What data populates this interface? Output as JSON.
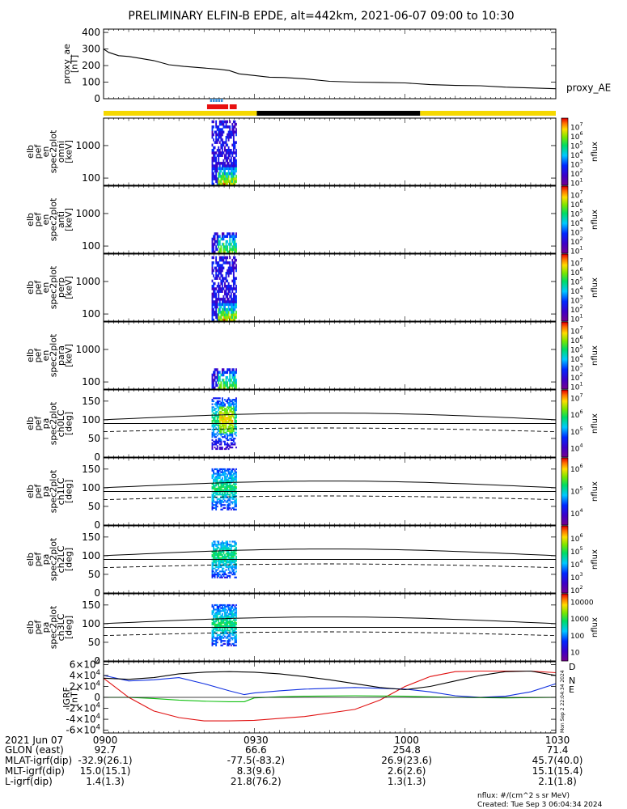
{
  "title": "PRELIMINARY ELFIN-B EPDE, alt=442km, 2021-06-07 09:00 to 10:30",
  "colors": {
    "axis": "#000000",
    "sunlight": "#f5d800",
    "shadow": "#000000",
    "science": "#e81010",
    "fast": "#3a8fd8",
    "bx": "#e01010",
    "by": "#1030e0",
    "bz": "#10c010",
    "btot": "#000000"
  },
  "chart_data": [
    {
      "type": "line",
      "id": "ae",
      "ylabel": [
        "proxy_ae",
        "[nT]"
      ],
      "ylim": [
        0,
        420
      ],
      "yticks": [
        0,
        100,
        200,
        300,
        400
      ],
      "series": [
        {
          "name": "proxy_AE",
          "x": [
            0,
            1,
            3,
            5,
            7,
            10,
            13,
            16,
            20,
            23,
            25,
            27,
            30,
            33,
            36,
            40,
            45,
            50,
            55,
            60,
            65,
            70,
            75,
            80,
            85,
            90
          ],
          "values": [
            300,
            280,
            260,
            255,
            245,
            230,
            205,
            195,
            185,
            178,
            170,
            150,
            140,
            130,
            128,
            120,
            105,
            100,
            98,
            95,
            85,
            80,
            78,
            70,
            65,
            60
          ]
        }
      ]
    },
    {
      "type": "heatmap",
      "id": "omni",
      "ylabel": [
        "elb",
        "pef",
        "en",
        "spec2plot",
        "omni",
        "[keV]"
      ],
      "yscale": "log",
      "ylim": [
        60,
        7000
      ],
      "yticks": [
        100,
        1000
      ],
      "colorbar": {
        "label": "nflux",
        "ticks": [
          "10^1",
          "10^2",
          "10^3",
          "10^4",
          "10^5",
          "10^6",
          "10^7"
        ]
      }
    },
    {
      "type": "heatmap",
      "id": "anti",
      "ylabel": [
        "elb",
        "pef",
        "en",
        "spec2plot",
        "anti",
        "[keV]"
      ],
      "yscale": "log",
      "ylim": [
        60,
        7000
      ],
      "yticks": [
        100,
        1000
      ],
      "colorbar": {
        "label": "nflux",
        "ticks": [
          "10^1",
          "10^2",
          "10^3",
          "10^4",
          "10^5",
          "10^6",
          "10^7"
        ]
      }
    },
    {
      "type": "heatmap",
      "id": "perp",
      "ylabel": [
        "elb",
        "pef",
        "en",
        "spec2plot",
        "perp",
        "[keV]"
      ],
      "yscale": "log",
      "ylim": [
        60,
        7000
      ],
      "yticks": [
        100,
        1000
      ],
      "colorbar": {
        "label": "nflux",
        "ticks": [
          "10^1",
          "10^2",
          "10^3",
          "10^4",
          "10^5",
          "10^6",
          "10^7"
        ]
      }
    },
    {
      "type": "heatmap",
      "id": "para",
      "ylabel": [
        "elb",
        "pef",
        "en",
        "spec2plot",
        "para",
        "[keV]"
      ],
      "yscale": "log",
      "ylim": [
        60,
        7000
      ],
      "yticks": [
        100,
        1000
      ],
      "colorbar": {
        "label": "nflux",
        "ticks": [
          "10^1",
          "10^2",
          "10^3",
          "10^4",
          "10^5",
          "10^6",
          "10^7"
        ]
      }
    },
    {
      "type": "heatmap",
      "id": "ch0",
      "ylabel": [
        "elb",
        "pef",
        "pa",
        "spec2plot",
        "ch0LC",
        "[deg]"
      ],
      "ylim": [
        0,
        180
      ],
      "yticks": [
        0,
        50,
        100,
        150
      ],
      "colorbar": {
        "label": "nflux",
        "ticks": [
          "10^4",
          "10^5",
          "10^6",
          "10^7"
        ]
      }
    },
    {
      "type": "heatmap",
      "id": "ch1",
      "ylabel": [
        "elb",
        "pef",
        "pa",
        "spec2plot",
        "ch1LC",
        "[deg]"
      ],
      "ylim": [
        0,
        180
      ],
      "yticks": [
        0,
        50,
        100,
        150
      ],
      "colorbar": {
        "label": "nflux",
        "ticks": [
          "10^4",
          "10^5",
          "10^6"
        ]
      }
    },
    {
      "type": "heatmap",
      "id": "ch2",
      "ylabel": [
        "elb",
        "pef",
        "pa",
        "spec2plot",
        "ch2LC",
        "[deg]"
      ],
      "ylim": [
        0,
        180
      ],
      "yticks": [
        0,
        50,
        100,
        150
      ],
      "colorbar": {
        "label": "nflux",
        "ticks": [
          "10^2",
          "10^3",
          "10^4",
          "10^5",
          "10^6"
        ]
      }
    },
    {
      "type": "heatmap",
      "id": "ch3",
      "ylabel": [
        "elb",
        "pef",
        "pa",
        "spec2plot",
        "ch3LC",
        "[deg]"
      ],
      "ylim": [
        0,
        180
      ],
      "yticks": [
        0,
        50,
        100,
        150
      ],
      "colorbar": {
        "label": "nflux",
        "ticks": [
          "10",
          "100",
          "1000",
          "10000"
        ]
      }
    },
    {
      "type": "line",
      "id": "igrf",
      "ylabel": [
        "IGRF",
        "[nT]"
      ],
      "ylim": [
        -65000,
        65000
      ],
      "yticks": [
        "-6×10^4",
        "-4×10^4",
        "-2×10^4",
        "0",
        "2×10^4",
        "4×10^4",
        "6×10^4"
      ],
      "series": [
        {
          "name": "D",
          "x": [
            0,
            5,
            10,
            15,
            20,
            25,
            30,
            40,
            50,
            55,
            60,
            65,
            70,
            75,
            80,
            85,
            90
          ],
          "values": [
            35000,
            0,
            -25000,
            -37000,
            -43000,
            -43000,
            -42000,
            -35000,
            -22000,
            -5000,
            20000,
            38000,
            47000,
            48000,
            48000,
            48000,
            45000
          ]
        },
        {
          "name": "N",
          "x": [
            0,
            5,
            10,
            15,
            20,
            25,
            28,
            30,
            35,
            40,
            50,
            60,
            65,
            70,
            75,
            80,
            85,
            90
          ],
          "values": [
            40000,
            30000,
            32000,
            36000,
            25000,
            12000,
            5000,
            8000,
            12000,
            15000,
            18000,
            15000,
            10000,
            3000,
            0,
            2000,
            10000,
            25000
          ]
        },
        {
          "name": "E",
          "x": [
            0,
            5,
            10,
            15,
            20,
            25,
            28,
            30,
            35,
            40,
            50,
            60,
            70,
            80,
            90
          ],
          "values": [
            0,
            0,
            -2000,
            -5000,
            -7000,
            -8000,
            -8000,
            -1000,
            1000,
            2000,
            3000,
            2000,
            0,
            -1000,
            0
          ]
        },
        {
          "name": "",
          "x": [
            0,
            5,
            10,
            15,
            20,
            25,
            30,
            35,
            40,
            45,
            50,
            55,
            60,
            65,
            70,
            75,
            80,
            85,
            90
          ],
          "values": [
            35000,
            33000,
            36000,
            43000,
            46000,
            47000,
            46000,
            43000,
            38000,
            32000,
            25000,
            18000,
            14000,
            20000,
            30000,
            40000,
            47000,
            48000,
            40000
          ]
        }
      ]
    }
  ],
  "annotations": {
    "timestamp_vertical": "Mon Sep  2 22:04:34 2024"
  },
  "xaxis": {
    "ticks": [
      {
        "t": 0,
        "label": "0900",
        "glon": "92.7",
        "mlat": "-32.9(26.1)",
        "mlt": "15.0(15.1)",
        "l": "1.4(1.3)"
      },
      {
        "t": 30,
        "label": "0930",
        "glon": "66.6",
        "mlat": "-77.5(-83.2)",
        "mlt": "8.3(9.6)",
        "l": "21.8(76.2)"
      },
      {
        "t": 60,
        "label": "1000",
        "glon": "254.8",
        "mlat": "26.9(23.6)",
        "mlt": "2.6(2.6)",
        "l": "1.3(1.3)"
      },
      {
        "t": 90,
        "label": "1030",
        "glon": "71.4",
        "mlat": "45.7(40.0)",
        "mlt": "15.1(15.4)",
        "l": "2.1(1.8)"
      }
    ],
    "row_labels": [
      "2021 Jun 07",
      "GLON (east)",
      "MLAT-igrf(dip)",
      "MLT-igrf(dip)",
      "L-igrf(dip)"
    ]
  },
  "footer": {
    "units": "nflux: #/(cm^2 s sr MeV)",
    "created": "Created: Tue Sep  3 06:04:34 2024"
  }
}
